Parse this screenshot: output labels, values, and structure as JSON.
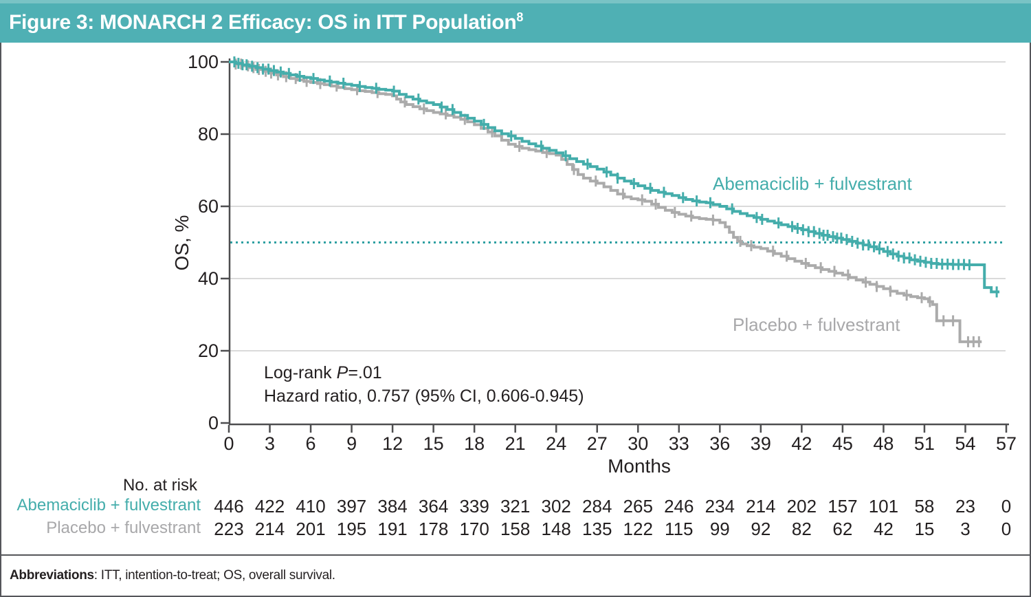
{
  "header": {
    "title": "Figure 3: MONARCH 2 Efficacy: OS in ITT Population",
    "superscript": "8"
  },
  "colors": {
    "header_teal": "#4FB0B4",
    "header_teal_light": "#79C3C5",
    "curve_teal": "#44ADAB",
    "curve_gray": "#ABABAB",
    "legend_gray_text": "#A8A8AA",
    "reference_teal": "#2E9FA1",
    "gridline": "#DADADA",
    "axis": "#4D4D4F",
    "text": "#231F20",
    "border": "#55565A"
  },
  "chart_data": {
    "type": "line",
    "subtype": "kaplan-meier-step",
    "title": "MONARCH 2 Efficacy: OS in ITT Population",
    "xlabel": "Months",
    "ylabel": "OS, %",
    "xlim": [
      0,
      57
    ],
    "ylim": [
      0,
      100
    ],
    "xticks": [
      0,
      3,
      6,
      9,
      12,
      15,
      18,
      21,
      24,
      27,
      30,
      33,
      36,
      39,
      42,
      45,
      48,
      51,
      54,
      57
    ],
    "yticks": [
      0,
      20,
      40,
      60,
      80,
      100
    ],
    "grid": "horizontal",
    "legend_position": "on-chart",
    "reference_line": {
      "y": 50,
      "style": "dotted"
    },
    "annotations": {
      "line1_prefix": "Log-rank ",
      "line1_italic": "P",
      "line1_suffix": "=.01",
      "line2": "Hazard ratio, 0.757 (95% CI, 0.606-0.945)"
    },
    "series": [
      {
        "name": "Placebo + fulvestrant",
        "color": "#ABABAB",
        "points": [
          [
            0,
            100
          ],
          [
            0.5,
            99.4
          ],
          [
            1,
            98.9
          ],
          [
            1.5,
            98.4
          ],
          [
            2,
            97.9
          ],
          [
            2.5,
            97.4
          ],
          [
            3,
            96.9
          ],
          [
            3.5,
            96.4
          ],
          [
            4,
            95.9
          ],
          [
            4.5,
            95.4
          ],
          [
            5,
            95
          ],
          [
            5.5,
            94.6
          ],
          [
            6,
            94.3
          ],
          [
            6.5,
            94
          ],
          [
            7,
            93.7
          ],
          [
            7.5,
            93.3
          ],
          [
            8,
            92.9
          ],
          [
            8.5,
            92.6
          ],
          [
            9,
            92.3
          ],
          [
            9.5,
            92
          ],
          [
            10,
            91.8
          ],
          [
            10.5,
            91.5
          ],
          [
            11,
            91.2
          ],
          [
            11.5,
            91
          ],
          [
            12,
            90.6
          ],
          [
            12.3,
            89.7
          ],
          [
            12.6,
            88.9
          ],
          [
            13,
            88.2
          ],
          [
            13.5,
            87.6
          ],
          [
            14,
            87
          ],
          [
            14.5,
            86.5
          ],
          [
            15,
            86
          ],
          [
            15.5,
            85.6
          ],
          [
            16,
            85.2
          ],
          [
            16.5,
            84.7
          ],
          [
            17,
            84.1
          ],
          [
            17.5,
            83.4
          ],
          [
            18,
            82.6
          ],
          [
            18.5,
            81.6
          ],
          [
            19,
            80.6
          ],
          [
            19.5,
            79.5
          ],
          [
            20,
            78.3
          ],
          [
            20.5,
            77.2
          ],
          [
            21,
            76.6
          ],
          [
            21.5,
            76.1
          ],
          [
            22,
            75.7
          ],
          [
            22.5,
            75.3
          ],
          [
            23,
            74.9
          ],
          [
            23.5,
            74.6
          ],
          [
            24,
            74.2
          ],
          [
            24.4,
            73
          ],
          [
            24.8,
            71.6
          ],
          [
            25.2,
            70.2
          ],
          [
            25.6,
            68.8
          ],
          [
            26,
            67.8
          ],
          [
            26.5,
            67
          ],
          [
            27,
            66.4
          ],
          [
            27.5,
            65.4
          ],
          [
            28,
            64.4
          ],
          [
            28.5,
            63.4
          ],
          [
            29,
            62.6
          ],
          [
            29.5,
            62.1
          ],
          [
            30,
            61.8
          ],
          [
            30.5,
            61.4
          ],
          [
            31,
            60.6
          ],
          [
            31.5,
            59.7
          ],
          [
            32,
            58.9
          ],
          [
            32.5,
            58.3
          ],
          [
            33,
            57.8
          ],
          [
            33.5,
            57.3
          ],
          [
            34,
            56.9
          ],
          [
            34.5,
            56.6
          ],
          [
            35,
            56.4
          ],
          [
            35.5,
            56.2
          ],
          [
            36,
            55.5
          ],
          [
            36.4,
            54.3
          ],
          [
            36.7,
            52.8
          ],
          [
            37,
            51.4
          ],
          [
            37.3,
            50.3
          ],
          [
            37.6,
            49.6
          ],
          [
            38,
            49.1
          ],
          [
            38.5,
            48.7
          ],
          [
            39,
            48.3
          ],
          [
            39.5,
            47.6
          ],
          [
            40,
            46.9
          ],
          [
            40.5,
            46.2
          ],
          [
            41,
            45.5
          ],
          [
            41.5,
            44.8
          ],
          [
            42,
            44.2
          ],
          [
            42.5,
            43.6
          ],
          [
            43,
            43
          ],
          [
            43.5,
            42.5
          ],
          [
            44,
            42
          ],
          [
            44.5,
            41.5
          ],
          [
            45,
            41
          ],
          [
            45.5,
            40.3
          ],
          [
            46,
            39.6
          ],
          [
            46.5,
            39
          ],
          [
            47,
            38.4
          ],
          [
            47.5,
            37.8
          ],
          [
            48,
            37.2
          ],
          [
            48.5,
            36.5
          ],
          [
            49,
            35.9
          ],
          [
            49.5,
            35.4
          ],
          [
            50,
            35
          ],
          [
            50.5,
            34.7
          ],
          [
            51,
            34.4
          ],
          [
            51.3,
            33.6
          ],
          [
            51.6,
            32.8
          ],
          [
            51.9,
            32.8
          ],
          [
            51.9,
            28.3
          ],
          [
            53.6,
            28.3
          ],
          [
            53.6,
            22.5
          ],
          [
            55.2,
            22.5
          ]
        ],
        "censor_ticks": [
          0.5,
          0.9,
          1.4,
          1.8,
          2.2,
          2.7,
          3.1,
          3.6,
          4.2,
          4.9,
          5.7,
          6.7,
          7.9,
          9.4,
          10.9,
          12.9,
          14.3,
          15.9,
          17.3,
          19.3,
          21.3,
          23.3,
          25.3,
          26.9,
          28.9,
          30.3,
          31.3,
          32.7,
          33.9,
          35.5,
          37.5,
          38.3,
          39.9,
          40.9,
          42.3,
          43.4,
          44.4,
          45.4,
          46.7,
          47.5,
          48.5,
          49.7,
          50.8,
          51.4,
          52.4,
          53.1,
          54.2,
          54.6,
          55.0
        ]
      },
      {
        "name": "Abemaciclib + fulvestrant",
        "color": "#44ADAB",
        "points": [
          [
            0,
            100
          ],
          [
            0.5,
            99.6
          ],
          [
            1,
            99.2
          ],
          [
            1.5,
            98.8
          ],
          [
            2,
            98.4
          ],
          [
            2.5,
            98
          ],
          [
            3,
            97.6
          ],
          [
            3.5,
            97.2
          ],
          [
            4,
            96.8
          ],
          [
            4.5,
            96.4
          ],
          [
            5,
            96
          ],
          [
            5.5,
            95.7
          ],
          [
            6,
            95.4
          ],
          [
            6.5,
            95
          ],
          [
            7,
            94.7
          ],
          [
            7.5,
            94.4
          ],
          [
            8,
            94.1
          ],
          [
            8.5,
            93.8
          ],
          [
            9,
            93.5
          ],
          [
            9.5,
            93.2
          ],
          [
            10,
            92.9
          ],
          [
            10.5,
            92.7
          ],
          [
            11,
            92.4
          ],
          [
            11.5,
            92.2
          ],
          [
            12,
            91.9
          ],
          [
            12.5,
            91
          ],
          [
            13,
            90.3
          ],
          [
            13.5,
            89.7
          ],
          [
            14,
            89.2
          ],
          [
            14.5,
            88.7
          ],
          [
            15,
            88.2
          ],
          [
            15.5,
            87.5
          ],
          [
            16,
            86.8
          ],
          [
            16.5,
            86
          ],
          [
            17,
            85.2
          ],
          [
            17.5,
            84.4
          ],
          [
            18,
            83.6
          ],
          [
            18.5,
            82.7
          ],
          [
            19,
            81.8
          ],
          [
            19.5,
            80.9
          ],
          [
            20,
            80.1
          ],
          [
            20.5,
            79.5
          ],
          [
            21,
            78.8
          ],
          [
            21.5,
            78
          ],
          [
            22,
            77.3
          ],
          [
            22.5,
            76.7
          ],
          [
            23,
            76.1
          ],
          [
            23.5,
            75.5
          ],
          [
            24,
            74.8
          ],
          [
            24.5,
            74
          ],
          [
            25,
            73.2
          ],
          [
            25.5,
            72.4
          ],
          [
            26,
            71.7
          ],
          [
            26.5,
            71
          ],
          [
            27,
            70.3
          ],
          [
            27.5,
            69.5
          ],
          [
            28,
            68.7
          ],
          [
            28.5,
            67.8
          ],
          [
            29,
            67
          ],
          [
            29.5,
            66.3
          ],
          [
            30,
            65.7
          ],
          [
            30.5,
            65
          ],
          [
            31,
            64.4
          ],
          [
            31.5,
            63.9
          ],
          [
            32,
            63.5
          ],
          [
            32.5,
            63
          ],
          [
            33,
            62.4
          ],
          [
            33.5,
            61.9
          ],
          [
            34,
            61.5
          ],
          [
            34.5,
            61.2
          ],
          [
            35,
            61
          ],
          [
            35.5,
            60.5
          ],
          [
            36,
            60
          ],
          [
            36.5,
            59.3
          ],
          [
            37,
            58.6
          ],
          [
            37.5,
            58
          ],
          [
            38,
            57.4
          ],
          [
            38.5,
            56.9
          ],
          [
            39,
            56.4
          ],
          [
            39.5,
            55.9
          ],
          [
            40,
            55.4
          ],
          [
            40.5,
            54.9
          ],
          [
            41,
            54.4
          ],
          [
            41.5,
            53.9
          ],
          [
            42,
            53.5
          ],
          [
            42.5,
            53
          ],
          [
            43,
            52.5
          ],
          [
            43.5,
            52
          ],
          [
            44,
            51.6
          ],
          [
            44.5,
            51.2
          ],
          [
            45,
            50.8
          ],
          [
            45.5,
            50.3
          ],
          [
            46,
            49.8
          ],
          [
            46.5,
            49.3
          ],
          [
            47,
            48.8
          ],
          [
            47.5,
            48.2
          ],
          [
            48,
            47.5
          ],
          [
            48.5,
            46.8
          ],
          [
            49,
            46.2
          ],
          [
            49.5,
            45.7
          ],
          [
            50,
            45.2
          ],
          [
            50.5,
            44.8
          ],
          [
            51,
            44.5
          ],
          [
            51.5,
            44.2
          ],
          [
            52,
            44
          ],
          [
            53,
            43.9
          ],
          [
            54,
            43.8
          ],
          [
            55.4,
            43.8
          ],
          [
            55.4,
            37.5
          ],
          [
            55.9,
            37.5
          ],
          [
            55.9,
            36.3
          ],
          [
            56.5,
            36.3
          ]
        ],
        "censor_ticks": [
          0.4,
          0.7,
          1.0,
          1.3,
          1.7,
          2.1,
          2.5,
          2.9,
          3.3,
          3.8,
          4.4,
          5.2,
          6.2,
          7.4,
          8.4,
          9.6,
          10.8,
          12.1,
          13.9,
          15.6,
          16.4,
          18.7,
          20.7,
          22.9,
          24.7,
          26.3,
          27.7,
          28.5,
          29.7,
          30.9,
          31.9,
          33.3,
          34.3,
          35.3,
          36.9,
          38.7,
          39.1,
          40.3,
          41.3,
          41.7,
          42.1,
          42.5,
          42.9,
          43.3,
          43.6,
          43.9,
          44.3,
          44.6,
          44.9,
          45.3,
          45.7,
          46.1,
          46.5,
          46.9,
          47.3,
          47.7,
          48.3,
          48.7,
          49.1,
          49.5,
          49.9,
          50.3,
          50.7,
          51.1,
          51.5,
          51.9,
          52.3,
          52.7,
          53.1,
          53.5,
          53.9,
          54.3,
          56.3
        ]
      }
    ]
  },
  "risk_table": {
    "title": "No. at risk",
    "months": [
      0,
      3,
      6,
      9,
      12,
      15,
      18,
      21,
      24,
      27,
      30,
      33,
      36,
      39,
      42,
      45,
      48,
      51,
      54,
      57
    ],
    "rows": [
      {
        "label": "Abemaciclib + fulvestrant",
        "color": "#44ADAB",
        "values": [
          446,
          422,
          410,
          397,
          384,
          364,
          339,
          321,
          302,
          284,
          265,
          246,
          234,
          214,
          202,
          157,
          101,
          58,
          23,
          0
        ]
      },
      {
        "label": "Placebo + fulvestrant",
        "color": "#A8A8AA",
        "values": [
          223,
          214,
          201,
          195,
          191,
          178,
          170,
          158,
          148,
          135,
          122,
          115,
          99,
          92,
          82,
          62,
          42,
          15,
          3,
          0
        ]
      }
    ]
  },
  "footer": {
    "bold_label": "Abbreviations",
    "text": ": ITT, intention-to-treat; OS, overall survival."
  }
}
